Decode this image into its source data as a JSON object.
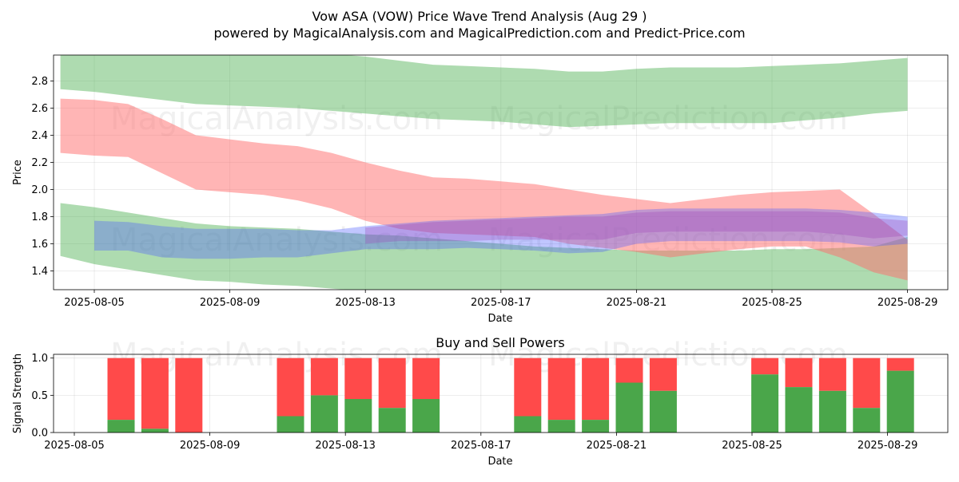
{
  "title": "Vow ASA (VOW) Price Wave Trend Analysis (Aug 29 )",
  "subtitle": "powered by MagicalAnalysis.com and MagicalPrediction.com and Predict-Price.com",
  "watermarks": [
    "MagicalAnalysis.com",
    "MagicalPrediction.com"
  ],
  "colors": {
    "green_band": "#4caf50",
    "red_band": "#ff6b6b",
    "blue_band": "#4a5cff",
    "purple_band": "#9b3fb5",
    "buy": "#4aa64a",
    "sell": "#ff4a4a"
  },
  "chart_data": [
    {
      "type": "area",
      "name": "price-wave",
      "xlabel": "Date",
      "ylabel": "Price",
      "x_tick_labels": [
        "2025-08-05",
        "2025-08-09",
        "2025-08-13",
        "2025-08-17",
        "2025-08-21",
        "2025-08-25",
        "2025-08-29"
      ],
      "y_tick_labels": [
        "1.4",
        "1.6",
        "1.8",
        "2.0",
        "2.2",
        "2.4",
        "2.6",
        "2.8"
      ],
      "xlim": [
        "2025-08-03",
        "2025-08-29"
      ],
      "ylim": [
        1.26,
        2.99
      ],
      "grid": true,
      "bands": [
        {
          "color": "green_band",
          "opacity": 0.45,
          "x": [
            "2025-08-04",
            "2025-08-05",
            "2025-08-06",
            "2025-08-07",
            "2025-08-08",
            "2025-08-09",
            "2025-08-10",
            "2025-08-11",
            "2025-08-12",
            "2025-08-13",
            "2025-08-14",
            "2025-08-15",
            "2025-08-16",
            "2025-08-17",
            "2025-08-18",
            "2025-08-19",
            "2025-08-20",
            "2025-08-21",
            "2025-08-22",
            "2025-08-23",
            "2025-08-24",
            "2025-08-25",
            "2025-08-26",
            "2025-08-27",
            "2025-08-28",
            "2025-08-29"
          ],
          "upper": [
            3.0,
            3.0,
            3.0,
            3.0,
            3.0,
            3.0,
            3.0,
            3.0,
            3.0,
            2.98,
            2.95,
            2.92,
            2.91,
            2.9,
            2.89,
            2.87,
            2.87,
            2.89,
            2.9,
            2.9,
            2.9,
            2.91,
            2.92,
            2.93,
            2.95,
            2.97
          ],
          "lower": [
            2.74,
            2.72,
            2.69,
            2.66,
            2.63,
            2.62,
            2.61,
            2.6,
            2.58,
            2.56,
            2.54,
            2.52,
            2.51,
            2.5,
            2.48,
            2.46,
            2.47,
            2.48,
            2.49,
            2.49,
            2.49,
            2.49,
            2.51,
            2.53,
            2.56,
            2.58
          ]
        },
        {
          "color": "green_band",
          "opacity": 0.45,
          "x": [
            "2025-08-04",
            "2025-08-05",
            "2025-08-06",
            "2025-08-07",
            "2025-08-08",
            "2025-08-09",
            "2025-08-10",
            "2025-08-11",
            "2025-08-12",
            "2025-08-13",
            "2025-08-14",
            "2025-08-15",
            "2025-08-16",
            "2025-08-17",
            "2025-08-18",
            "2025-08-19",
            "2025-08-20",
            "2025-08-21",
            "2025-08-22",
            "2025-08-23",
            "2025-08-24",
            "2025-08-25",
            "2025-08-26",
            "2025-08-27",
            "2025-08-28",
            "2025-08-29"
          ],
          "upper": [
            1.9,
            1.87,
            1.83,
            1.79,
            1.75,
            1.73,
            1.72,
            1.71,
            1.69,
            1.67,
            1.66,
            1.64,
            1.62,
            1.6,
            1.58,
            1.57,
            1.56,
            1.55,
            1.55,
            1.55,
            1.55,
            1.56,
            1.56,
            1.57,
            1.58,
            1.65
          ],
          "lower": [
            1.51,
            1.45,
            1.41,
            1.37,
            1.33,
            1.32,
            1.3,
            1.29,
            1.27,
            1.25,
            1.24,
            1.23,
            1.22,
            1.21,
            1.2,
            1.19,
            1.19,
            1.19,
            1.19,
            1.19,
            1.19,
            1.2,
            1.2,
            1.21,
            1.22,
            1.23
          ]
        },
        {
          "color": "red_band",
          "opacity": 0.5,
          "x": [
            "2025-08-04",
            "2025-08-05",
            "2025-08-06",
            "2025-08-07",
            "2025-08-08",
            "2025-08-09",
            "2025-08-10",
            "2025-08-11",
            "2025-08-12",
            "2025-08-13",
            "2025-08-14",
            "2025-08-15",
            "2025-08-16",
            "2025-08-17",
            "2025-08-18",
            "2025-08-19",
            "2025-08-20",
            "2025-08-21",
            "2025-08-22",
            "2025-08-23",
            "2025-08-24",
            "2025-08-25",
            "2025-08-26",
            "2025-08-27",
            "2025-08-28",
            "2025-08-29"
          ],
          "upper": [
            2.67,
            2.66,
            2.63,
            2.52,
            2.4,
            2.37,
            2.34,
            2.32,
            2.27,
            2.2,
            2.14,
            2.09,
            2.08,
            2.06,
            2.04,
            2.0,
            1.96,
            1.93,
            1.9,
            1.93,
            1.96,
            1.98,
            1.99,
            2.0,
            1.82,
            1.63
          ],
          "lower": [
            2.27,
            2.25,
            2.24,
            2.12,
            2.0,
            1.98,
            1.96,
            1.92,
            1.86,
            1.77,
            1.71,
            1.68,
            1.67,
            1.66,
            1.65,
            1.6,
            1.57,
            1.54,
            1.5,
            1.53,
            1.56,
            1.58,
            1.58,
            1.5,
            1.39,
            1.33
          ]
        },
        {
          "color": "blue_band",
          "opacity": 0.35,
          "x": [
            "2025-08-05",
            "2025-08-06",
            "2025-08-07",
            "2025-08-08",
            "2025-08-09",
            "2025-08-10",
            "2025-08-11",
            "2025-08-12",
            "2025-08-13",
            "2025-08-14",
            "2025-08-15",
            "2025-08-16",
            "2025-08-17",
            "2025-08-18",
            "2025-08-19",
            "2025-08-20",
            "2025-08-21",
            "2025-08-22",
            "2025-08-23",
            "2025-08-24",
            "2025-08-25",
            "2025-08-26",
            "2025-08-27",
            "2025-08-28",
            "2025-08-29"
          ],
          "upper": [
            1.77,
            1.76,
            1.73,
            1.71,
            1.71,
            1.71,
            1.7,
            1.7,
            1.73,
            1.75,
            1.77,
            1.78,
            1.79,
            1.8,
            1.81,
            1.82,
            1.85,
            1.86,
            1.86,
            1.86,
            1.86,
            1.86,
            1.85,
            1.83,
            1.8
          ],
          "lower": [
            1.55,
            1.55,
            1.5,
            1.49,
            1.49,
            1.5,
            1.5,
            1.53,
            1.56,
            1.56,
            1.56,
            1.57,
            1.56,
            1.55,
            1.53,
            1.54,
            1.6,
            1.62,
            1.62,
            1.62,
            1.62,
            1.62,
            1.61,
            1.58,
            1.6
          ]
        },
        {
          "color": "purple_band",
          "opacity": 0.3,
          "x": [
            "2025-08-13",
            "2025-08-14",
            "2025-08-15",
            "2025-08-16",
            "2025-08-17",
            "2025-08-18",
            "2025-08-19",
            "2025-08-20",
            "2025-08-21",
            "2025-08-22",
            "2025-08-23",
            "2025-08-24",
            "2025-08-25",
            "2025-08-26",
            "2025-08-27",
            "2025-08-28",
            "2025-08-29"
          ],
          "upper": [
            1.72,
            1.74,
            1.76,
            1.77,
            1.78,
            1.79,
            1.8,
            1.8,
            1.83,
            1.84,
            1.84,
            1.84,
            1.84,
            1.84,
            1.83,
            1.79,
            1.77
          ],
          "lower": [
            1.6,
            1.62,
            1.62,
            1.62,
            1.63,
            1.63,
            1.63,
            1.63,
            1.68,
            1.69,
            1.69,
            1.69,
            1.69,
            1.69,
            1.67,
            1.64,
            1.66
          ]
        }
      ]
    },
    {
      "type": "bar",
      "name": "buy-sell-powers",
      "title": "Buy and Sell Powers",
      "xlabel": "Date",
      "ylabel": "Signal Strength",
      "x_tick_labels": [
        "2025-08-05",
        "2025-08-09",
        "2025-08-13",
        "2025-08-17",
        "2025-08-21",
        "2025-08-25",
        "2025-08-29"
      ],
      "y_tick_labels": [
        "0.0",
        "0.5",
        "1.0"
      ],
      "ylim": [
        0,
        1.05
      ],
      "grid": true,
      "categories": [
        "2025-08-06",
        "2025-08-07",
        "2025-08-08",
        "2025-08-11",
        "2025-08-12",
        "2025-08-13",
        "2025-08-14",
        "2025-08-15",
        "2025-08-18",
        "2025-08-19",
        "2025-08-20",
        "2025-08-21",
        "2025-08-22",
        "2025-08-25",
        "2025-08-26",
        "2025-08-27",
        "2025-08-28",
        "2025-08-29"
      ],
      "series": [
        {
          "values": [
            0.17,
            0.05,
            0.0,
            0.22,
            0.5,
            0.45,
            0.33,
            0.45,
            0.22,
            0.17,
            0.17,
            0.67,
            0.56,
            0.78,
            0.61,
            0.56,
            0.33,
            0.83
          ]
        },
        {
          "values": [
            0.83,
            0.95,
            1.0,
            0.78,
            0.5,
            0.55,
            0.67,
            0.55,
            0.78,
            0.83,
            0.83,
            0.33,
            0.44,
            0.22,
            0.39,
            0.44,
            0.67,
            0.17
          ]
        }
      ]
    }
  ]
}
